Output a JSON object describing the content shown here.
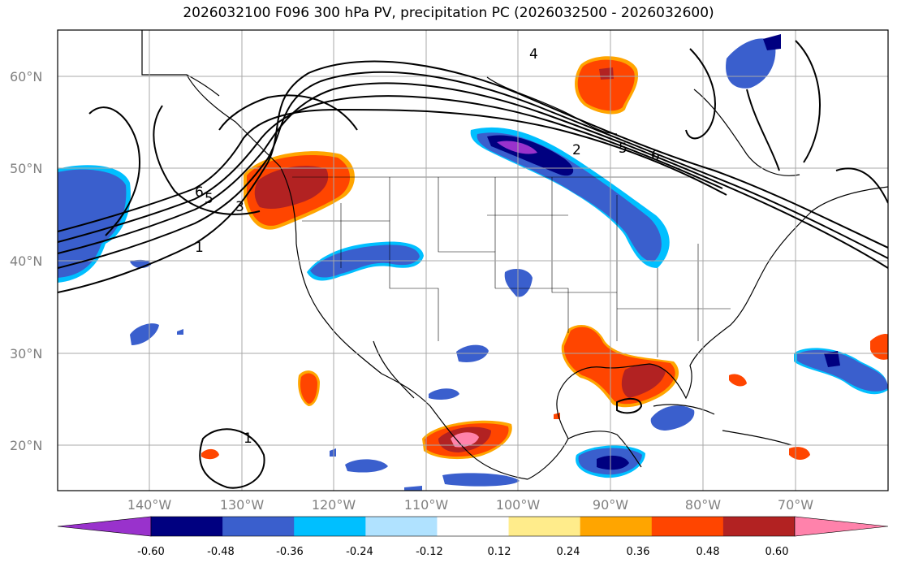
{
  "title": "2026032100 F096 300 hPa PV, precipitation PC (2026032500 - 2026032600)",
  "lat_labels": [
    "60°N",
    "50°N",
    "40°N",
    "30°N",
    "20°N"
  ],
  "lon_labels": [
    "140°W",
    "130°W",
    "120°W",
    "110°W",
    "100°W",
    "90°W",
    "80°W",
    "70°W"
  ],
  "colorbar": {
    "ticks": [
      "-0.60",
      "-0.48",
      "-0.36",
      "-0.24",
      "-0.12",
      "0.12",
      "0.24",
      "0.36",
      "0.48",
      "0.60"
    ],
    "colors": [
      "#9932cc",
      "#000080",
      "#3a5fcd",
      "#00bfff",
      "#b0e2ff",
      "#ffffff",
      "#ffec8b",
      "#ffa500",
      "#ff4500",
      "#b22222",
      "#ff82ab"
    ]
  },
  "pv_labels": [
    "1",
    "2",
    "3",
    "4",
    "5",
    "6"
  ],
  "colors": {
    "negative_dark": "#000080",
    "negative": "#3a5fcd",
    "negative_light": "#00bfff",
    "positive": "#ff4500",
    "positive_dark": "#b22222",
    "positive_light": "#ffa500",
    "pink": "#ff82ab"
  }
}
